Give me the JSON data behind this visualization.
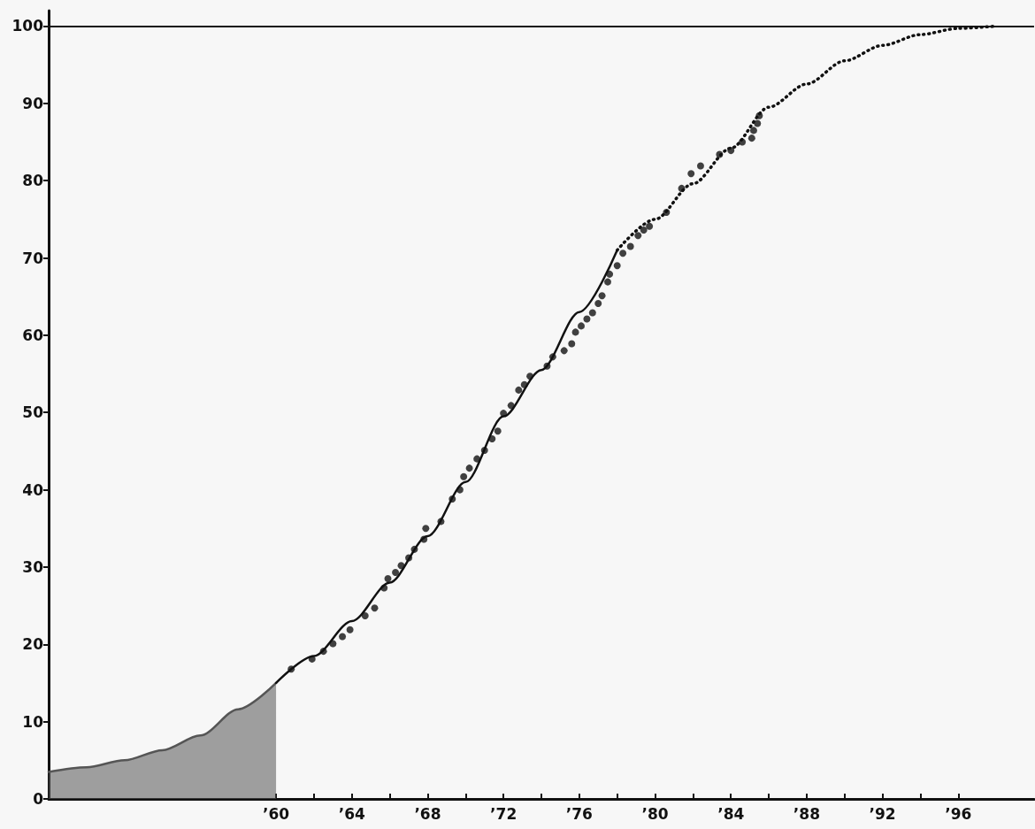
{
  "chart_data": {
    "type": "line",
    "xlim": [
      1948,
      2000
    ],
    "ylim": [
      0,
      102
    ],
    "xticks": [
      {
        "value": 1960,
        "label": "’60"
      },
      {
        "value": 1962,
        "label": null
      },
      {
        "value": 1964,
        "label": "’64"
      },
      {
        "value": 1966,
        "label": null
      },
      {
        "value": 1968,
        "label": "’68"
      },
      {
        "value": 1970,
        "label": null
      },
      {
        "value": 1972,
        "label": "’72"
      },
      {
        "value": 1974,
        "label": null
      },
      {
        "value": 1976,
        "label": "’76"
      },
      {
        "value": 1978,
        "label": null
      },
      {
        "value": 1980,
        "label": "’80"
      },
      {
        "value": 1982,
        "label": null
      },
      {
        "value": 1984,
        "label": "’84"
      },
      {
        "value": 1986,
        "label": null
      },
      {
        "value": 1988,
        "label": "’88"
      },
      {
        "value": 1990,
        "label": null
      },
      {
        "value": 1992,
        "label": "’92"
      },
      {
        "value": 1994,
        "label": null
      },
      {
        "value": 1996,
        "label": "’96"
      }
    ],
    "yticks": [
      0,
      10,
      20,
      30,
      40,
      50,
      60,
      70,
      80,
      90,
      100
    ],
    "grid": false,
    "ref_lines": [
      {
        "axis": "y",
        "value": 100,
        "color": "#111111",
        "line_style": "solid"
      }
    ],
    "series": [
      {
        "type": "area",
        "color": "#555555",
        "x": [
          1948,
          1950,
          1952,
          1954,
          1956,
          1958,
          1960
        ],
        "values": [
          3.5,
          4.1,
          5,
          6.3,
          8.2,
          11.6,
          15
        ]
      },
      {
        "color": "#111111",
        "line_style": "solid",
        "marker": "none",
        "x": [
          1960,
          1962,
          1964,
          1966,
          1968,
          1970,
          1972,
          1974,
          1976,
          1978
        ],
        "values": [
          15,
          18.5,
          23,
          28,
          34,
          41,
          49.5,
          55.5,
          63,
          71
        ]
      },
      {
        "color": "#111111",
        "line_style": "dotted",
        "marker": "none",
        "x": [
          1978,
          1980,
          1982,
          1984,
          1986,
          1988,
          1990,
          1992,
          1994,
          1996,
          1998
        ],
        "values": [
          71,
          75,
          79.6,
          84.2,
          89.5,
          92.5,
          95.5,
          97.5,
          98.9,
          99.7,
          100
        ]
      },
      {
        "type": "scatter",
        "color": "#111111",
        "marker": "circle",
        "x": [
          1960.8,
          1961.9,
          1962.5,
          1963.0,
          1963.5,
          1963.9,
          1964.7,
          1965.2,
          1965.7,
          1965.9,
          1966.3,
          1966.6,
          1967.0,
          1967.3,
          1967.8,
          1967.9,
          1968.7,
          1969.3,
          1969.7,
          1969.9,
          1970.2,
          1970.6,
          1971.0,
          1971.4,
          1971.7,
          1972.0,
          1972.4,
          1972.8,
          1973.1,
          1973.4,
          1974.3,
          1974.6,
          1975.2,
          1975.6,
          1975.8,
          1976.1,
          1976.4,
          1976.7,
          1977.0,
          1977.2,
          1977.5,
          1977.6,
          1978.0,
          1978.3,
          1978.7,
          1979.1,
          1979.4,
          1979.7,
          1980.6,
          1981.4,
          1981.9,
          1982.4,
          1983.4,
          1984.0,
          1984.6,
          1985.1,
          1985.2,
          1985.4,
          1985.5
        ],
        "values": [
          16.8,
          18.1,
          19.1,
          20.1,
          21.0,
          21.9,
          23.7,
          24.7,
          27.3,
          28.5,
          29.3,
          30.2,
          31.2,
          32.3,
          33.6,
          35.0,
          35.9,
          38.8,
          40.0,
          41.7,
          42.8,
          44.0,
          45.1,
          46.6,
          47.6,
          49.9,
          50.9,
          52.9,
          53.6,
          54.7,
          56.0,
          57.2,
          58.0,
          58.9,
          60.4,
          61.2,
          62.1,
          62.9,
          64.1,
          65.1,
          66.9,
          67.9,
          69.0,
          70.6,
          71.5,
          72.9,
          73.6,
          74.1,
          75.9,
          79.0,
          80.9,
          81.9,
          83.4,
          83.9,
          85.0,
          85.5,
          86.5,
          87.4,
          88.4
        ]
      }
    ]
  }
}
